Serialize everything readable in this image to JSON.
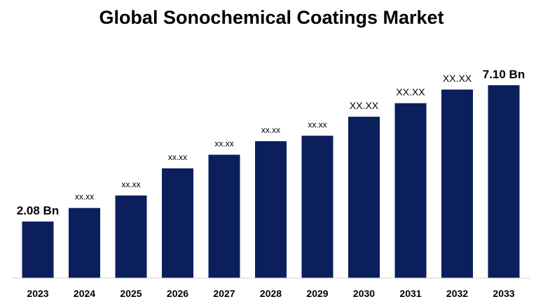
{
  "chart_data": {
    "type": "bar",
    "title": "Global Sonochemical Coatings Market",
    "xlabel": "",
    "ylabel": "",
    "categories": [
      "2023",
      "2024",
      "2025",
      "2026",
      "2027",
      "2028",
      "2029",
      "2030",
      "2031",
      "2032",
      "2033"
    ],
    "values": [
      2.08,
      2.58,
      3.04,
      4.04,
      4.54,
      5.04,
      5.24,
      5.94,
      6.44,
      6.94,
      7.1
    ],
    "data_labels": [
      "2.08 Bn",
      "xx.xx",
      "xx.xx",
      "xx.xx",
      "xx.xx",
      "xx.xx",
      "xx.xx",
      "XX.XX",
      "XX.XX",
      "XX.XX",
      "7.10 Bn"
    ],
    "unit": "Bn",
    "ylim": [
      0,
      7.1
    ],
    "grid": false,
    "legend": "none",
    "bar_color": "#0b1f5c",
    "axis_color": "#d0d0d0"
  }
}
